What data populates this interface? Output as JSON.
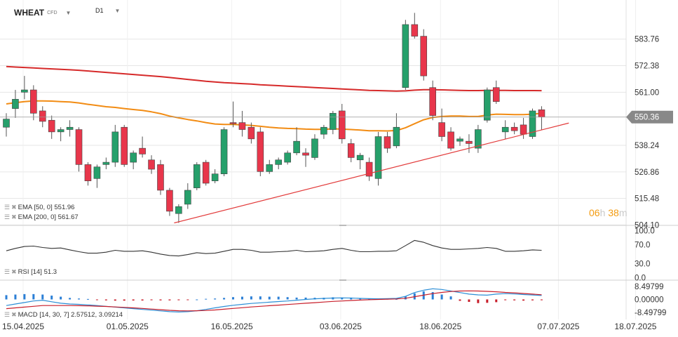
{
  "header": {
    "symbol": "WHEAT",
    "instrument_type": "CFD",
    "timeframe": "D1",
    "symbol_caret_icon": "caret-down-icon",
    "timeframe_caret_icon": "caret-down-icon"
  },
  "countdown": {
    "hours": "06",
    "h": "h",
    "minutes": "38",
    "m": "m"
  },
  "legends": {
    "ema50": "EMA [50, 0] 551.96",
    "ema200": "EMA [200, 0] 561.67",
    "rsi": "RSI [14] 51.3",
    "macd": "MACD [14, 30, 7] 2.57512, 3.09214",
    "legend_icons": [
      "layers-icon",
      "close-icon"
    ]
  },
  "colors": {
    "bull": "#26a06b",
    "bear": "#e8364b",
    "ema50": "#f28c14",
    "ema200": "#d62a2a",
    "trendline": "#e23a3a",
    "rsi": "#333333",
    "macd_line": "#2b8ed6",
    "signal_line": "#c81e2a",
    "hist_pos": "#2b7fd6",
    "hist_neg": "#c81e2a",
    "price_tag": "#888888",
    "grid": "#e6e6e6"
  },
  "chart_data": [
    {
      "type": "candlestick",
      "title": "WHEAT CFD D1",
      "current_price": 550.36,
      "current_price_label": "550.36",
      "y_ticks": [
        583.76,
        572.38,
        561.0,
        550.36,
        538.24,
        526.86,
        515.48,
        504.1
      ],
      "y_tick_labels": [
        "583.76",
        "572.38",
        "561.00",
        "550.36",
        "538.24",
        "526.86",
        "515.48",
        "504.10"
      ],
      "ylim": [
        504.1,
        595.0
      ],
      "x_tick_labels": [
        "15.04.2025",
        "01.05.2025",
        "16.05.2025",
        "03.06.2025",
        "18.06.2025",
        "07.07.2025",
        "18.07.2025"
      ],
      "candles": [
        {
          "o": 546.0,
          "h": 552.0,
          "l": 542.0,
          "c": 549.5
        },
        {
          "o": 554.0,
          "h": 562.0,
          "l": 550.0,
          "c": 558.0
        },
        {
          "o": 561.0,
          "h": 568.0,
          "l": 558.0,
          "c": 562.0
        },
        {
          "o": 562.0,
          "h": 564.0,
          "l": 549.0,
          "c": 552.0
        },
        {
          "o": 553.0,
          "h": 555.0,
          "l": 546.0,
          "c": 548.5
        },
        {
          "o": 549.0,
          "h": 551.0,
          "l": 541.0,
          "c": 544.0
        },
        {
          "o": 544.0,
          "h": 546.0,
          "l": 540.0,
          "c": 545.0
        },
        {
          "o": 545.0,
          "h": 549.0,
          "l": 542.0,
          "c": 546.0
        },
        {
          "o": 545.0,
          "h": 546.0,
          "l": 527.0,
          "c": 530.0
        },
        {
          "o": 530.0,
          "h": 531.0,
          "l": 521.0,
          "c": 523.0
        },
        {
          "o": 524.0,
          "h": 530.0,
          "l": 520.0,
          "c": 529.0
        },
        {
          "o": 530.0,
          "h": 533.0,
          "l": 528.0,
          "c": 531.0
        },
        {
          "o": 531.0,
          "h": 547.0,
          "l": 529.0,
          "c": 544.0
        },
        {
          "o": 546.0,
          "h": 547.0,
          "l": 529.0,
          "c": 530.0
        },
        {
          "o": 531.0,
          "h": 536.0,
          "l": 528.0,
          "c": 535.0
        },
        {
          "o": 537.0,
          "h": 542.0,
          "l": 533.0,
          "c": 534.5
        },
        {
          "o": 532.0,
          "h": 534.0,
          "l": 526.0,
          "c": 528.0
        },
        {
          "o": 530.0,
          "h": 532.0,
          "l": 517.0,
          "c": 519.0
        },
        {
          "o": 519.0,
          "h": 520.0,
          "l": 508.0,
          "c": 510.0
        },
        {
          "o": 509.0,
          "h": 513.0,
          "l": 505.0,
          "c": 512.0
        },
        {
          "o": 513.0,
          "h": 522.0,
          "l": 511.0,
          "c": 519.0
        },
        {
          "o": 520.0,
          "h": 531.0,
          "l": 519.0,
          "c": 530.0
        },
        {
          "o": 531.0,
          "h": 532.0,
          "l": 521.0,
          "c": 522.0
        },
        {
          "o": 523.0,
          "h": 528.0,
          "l": 522.0,
          "c": 526.0
        },
        {
          "o": 526.0,
          "h": 546.0,
          "l": 525.0,
          "c": 545.0
        },
        {
          "o": 548.0,
          "h": 557.0,
          "l": 546.0,
          "c": 547.5
        },
        {
          "o": 548.0,
          "h": 553.0,
          "l": 542.0,
          "c": 545.0
        },
        {
          "o": 546.0,
          "h": 548.0,
          "l": 539.0,
          "c": 541.0
        },
        {
          "o": 544.0,
          "h": 546.0,
          "l": 525.0,
          "c": 527.0
        },
        {
          "o": 527.0,
          "h": 532.0,
          "l": 526.0,
          "c": 530.0
        },
        {
          "o": 530.0,
          "h": 533.0,
          "l": 528.0,
          "c": 532.0
        },
        {
          "o": 531.0,
          "h": 536.0,
          "l": 530.0,
          "c": 535.0
        },
        {
          "o": 535.0,
          "h": 546.0,
          "l": 534.0,
          "c": 540.0
        },
        {
          "o": 535.0,
          "h": 537.0,
          "l": 529.0,
          "c": 534.0
        },
        {
          "o": 533.0,
          "h": 543.0,
          "l": 532.0,
          "c": 541.0
        },
        {
          "o": 543.0,
          "h": 547.0,
          "l": 541.0,
          "c": 546.0
        },
        {
          "o": 545.0,
          "h": 553.0,
          "l": 543.0,
          "c": 552.0
        },
        {
          "o": 553.0,
          "h": 556.0,
          "l": 539.0,
          "c": 541.0
        },
        {
          "o": 539.0,
          "h": 541.0,
          "l": 531.0,
          "c": 533.0
        },
        {
          "o": 532.0,
          "h": 535.0,
          "l": 528.0,
          "c": 534.0
        },
        {
          "o": 531.0,
          "h": 533.0,
          "l": 523.0,
          "c": 525.0
        },
        {
          "o": 524.0,
          "h": 544.0,
          "l": 521.0,
          "c": 542.0
        },
        {
          "o": 542.0,
          "h": 544.0,
          "l": 535.0,
          "c": 537.0
        },
        {
          "o": 538.0,
          "h": 552.0,
          "l": 537.0,
          "c": 546.0
        },
        {
          "o": 563.0,
          "h": 592.0,
          "l": 562.0,
          "c": 590.0
        },
        {
          "o": 590.0,
          "h": 595.0,
          "l": 584.0,
          "c": 585.0
        },
        {
          "o": 585.0,
          "h": 588.0,
          "l": 566.0,
          "c": 568.0
        },
        {
          "o": 563.0,
          "h": 566.0,
          "l": 549.0,
          "c": 551.0
        },
        {
          "o": 548.0,
          "h": 554.0,
          "l": 540.0,
          "c": 542.0
        },
        {
          "o": 544.0,
          "h": 546.0,
          "l": 536.0,
          "c": 537.0
        },
        {
          "o": 540.0,
          "h": 542.0,
          "l": 538.0,
          "c": 541.0
        },
        {
          "o": 540.0,
          "h": 543.0,
          "l": 535.0,
          "c": 539.0
        },
        {
          "o": 537.0,
          "h": 547.0,
          "l": 535.0,
          "c": 545.0
        },
        {
          "o": 549.0,
          "h": 563.0,
          "l": 548.0,
          "c": 562.0
        },
        {
          "o": 563.0,
          "h": 566.0,
          "l": 556.0,
          "c": 557.0
        },
        {
          "o": 544.0,
          "h": 549.0,
          "l": 541.0,
          "c": 546.0
        },
        {
          "o": 546.0,
          "h": 548.0,
          "l": 543.0,
          "c": 544.5
        },
        {
          "o": 547.0,
          "h": 550.0,
          "l": 541.0,
          "c": 543.0
        },
        {
          "o": 542.0,
          "h": 554.0,
          "l": 541.0,
          "c": 553.0
        },
        {
          "o": 553.5,
          "h": 555.0,
          "l": 545.0,
          "c": 550.36
        }
      ],
      "ema50": [
        556,
        556.5,
        557,
        557.3,
        557.3,
        557.2,
        557.0,
        556.8,
        556.4,
        555.8,
        555.3,
        554.8,
        554.5,
        554.0,
        553.6,
        553.2,
        552.6,
        551.8,
        550.8,
        550.0,
        549.3,
        548.7,
        548.0,
        547.4,
        547.2,
        547.2,
        547.0,
        546.8,
        546.4,
        546.0,
        545.7,
        545.5,
        545.4,
        545.2,
        545.1,
        545.1,
        545.3,
        545.2,
        545.0,
        544.8,
        544.5,
        544.5,
        544.4,
        544.6,
        545.8,
        547.5,
        549.2,
        550.2,
        550.6,
        550.8,
        550.8,
        550.6,
        550.6,
        551.2,
        551.6,
        551.5,
        551.4,
        551.4,
        551.6,
        551.96
      ],
      "ema200": [
        572,
        571.8,
        571.6,
        571.4,
        571.2,
        571.0,
        570.8,
        570.6,
        570.4,
        570.1,
        569.8,
        569.5,
        569.2,
        568.9,
        568.6,
        568.3,
        568.0,
        567.7,
        567.3,
        566.9,
        566.5,
        566.1,
        565.7,
        565.4,
        565.1,
        564.9,
        564.7,
        564.5,
        564.2,
        564.0,
        563.8,
        563.6,
        563.4,
        563.2,
        563.0,
        562.8,
        562.6,
        562.4,
        562.2,
        562.0,
        561.8,
        561.7,
        561.6,
        561.5,
        561.6,
        561.9,
        562.1,
        562.1,
        562.0,
        561.9,
        561.8,
        561.7,
        561.7,
        561.8,
        561.8,
        561.8,
        561.7,
        561.7,
        561.7,
        561.67
      ],
      "trendline": [
        [
          18.5,
          505.0
        ],
        [
          62.0,
          547.8
        ]
      ]
    },
    {
      "type": "line",
      "title": "RSI [14]",
      "y_ticks": [
        100.0,
        70.0,
        30.0,
        0.0
      ],
      "y_tick_labels": [
        "100.0",
        "70.0",
        "30.0",
        "0.0"
      ],
      "ylim": [
        0,
        100
      ],
      "values": [
        57,
        62,
        66,
        67,
        64,
        62,
        63,
        59,
        55,
        52,
        52,
        54,
        58,
        56,
        56,
        57,
        54,
        50,
        47,
        46,
        49,
        53,
        51,
        52,
        56,
        60,
        60,
        58,
        54,
        54,
        55,
        56,
        58,
        55,
        56,
        57,
        60,
        62,
        58,
        55,
        55,
        56,
        56,
        57,
        68,
        79,
        75,
        68,
        63,
        60,
        60,
        61,
        62,
        64,
        62,
        56,
        56,
        57,
        59,
        58
      ]
    },
    {
      "type": "bar",
      "title": "MACD [14, 30, 7]",
      "y_ticks": [
        8.49799,
        0.0,
        -8.49799
      ],
      "y_tick_labels": [
        "8.49799",
        "0.00000",
        "-8.49799"
      ],
      "ylim": [
        -8.49799,
        8.49799
      ],
      "macd": [
        -4.0,
        -3.0,
        -2.0,
        -1.0,
        -0.5,
        -1.5,
        -2.5,
        -3.0,
        -3.2,
        -3.6,
        -4.0,
        -4.5,
        -5.0,
        -5.5,
        -6.0,
        -6.5,
        -7.0,
        -7.5,
        -8.0,
        -8.2,
        -8.0,
        -7.4,
        -6.5,
        -5.5,
        -4.6,
        -3.8,
        -3.2,
        -2.6,
        -2.2,
        -1.8,
        -1.4,
        -1.0,
        -0.5,
        0.0,
        0.4,
        0.7,
        0.9,
        1.0,
        0.9,
        0.7,
        0.5,
        0.4,
        0.5,
        0.7,
        2.0,
        4.5,
        6.0,
        7.0,
        6.5,
        5.5,
        4.5,
        3.5,
        3.0,
        2.8,
        3.5,
        3.8,
        3.6,
        3.2,
        2.9,
        2.575
      ],
      "signal": [
        -6.0,
        -5.5,
        -5.0,
        -4.5,
        -4.0,
        -4.0,
        -4.0,
        -4.0,
        -4.1,
        -4.2,
        -4.4,
        -4.6,
        -4.9,
        -5.2,
        -5.5,
        -5.9,
        -6.3,
        -6.7,
        -7.1,
        -7.4,
        -7.5,
        -7.4,
        -7.2,
        -6.9,
        -6.4,
        -5.9,
        -5.4,
        -4.9,
        -4.5,
        -4.1,
        -3.7,
        -3.3,
        -2.9,
        -2.5,
        -2.1,
        -1.7,
        -1.3,
        -1.0,
        -0.7,
        -0.4,
        -0.2,
        0.0,
        0.2,
        0.3,
        0.8,
        1.8,
        2.8,
        3.8,
        4.6,
        5.2,
        5.5,
        5.6,
        5.5,
        5.3,
        5.0,
        4.6,
        4.3,
        3.9,
        3.5,
        3.092
      ],
      "histogram": [
        2.8,
        3.2,
        3.5,
        3.5,
        3.2,
        2.5,
        1.8,
        1.0,
        0.6,
        0.3,
        -0.4,
        -0.6,
        -0.8,
        -0.8,
        -0.7,
        -0.7,
        -0.5,
        -0.6,
        -0.6,
        -0.5,
        -0.3,
        0.0,
        0.4,
        0.6,
        1.0,
        1.5,
        1.8,
        2.0,
        2.0,
        1.8,
        1.8,
        1.5,
        1.2,
        1.2,
        1.1,
        1.1,
        1.4,
        1.3,
        1.2,
        0.7,
        0.6,
        0.7,
        0.4,
        0.3,
        2.0,
        4.0,
        5.3,
        4.8,
        3.2,
        2.0,
        -0.9,
        -1.6,
        -2.4,
        -2.2,
        -1.8,
        -0.5,
        -0.6,
        -0.8,
        -0.6,
        -0.5
      ]
    }
  ]
}
